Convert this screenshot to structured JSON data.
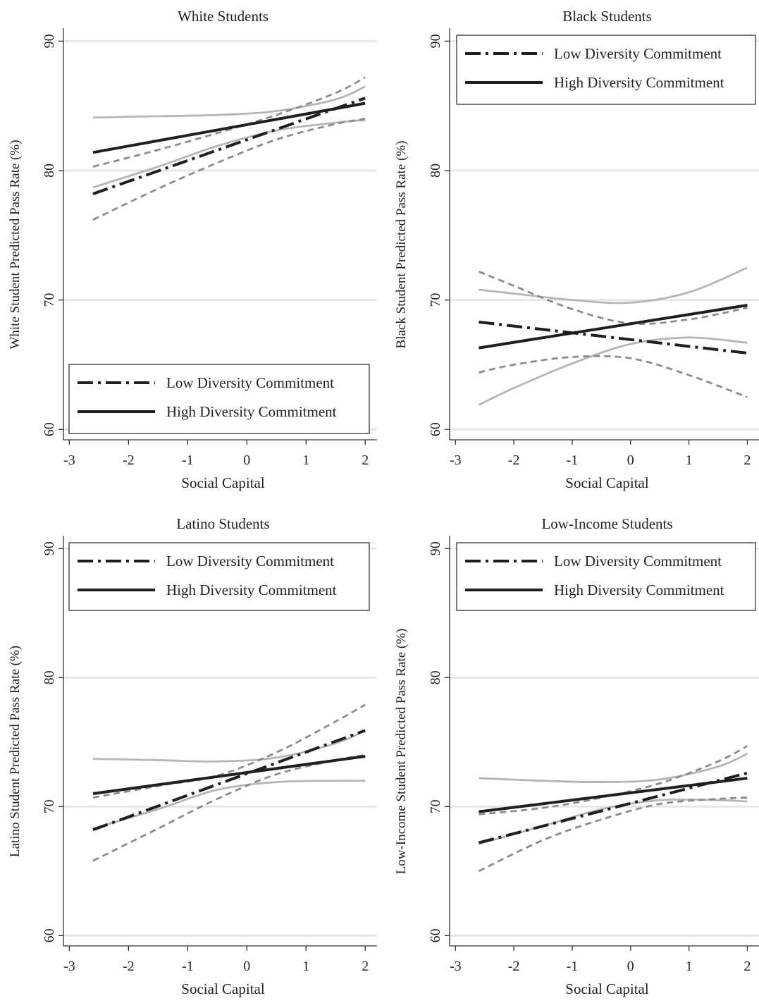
{
  "figure": {
    "layout": "2x2 grid"
  },
  "legend_labels": {
    "low": "Low Diversity Commitment",
    "high": "High Diversity Commitment"
  },
  "chart_data": [
    {
      "type": "line",
      "title": "White Students",
      "xlabel": "Social Capital",
      "ylabel": "White Student Predicted Pass Rate (%)",
      "xlim": [
        -3.1,
        2.2
      ],
      "ylim": [
        59.2,
        91
      ],
      "xticks": [
        -3,
        -2,
        -1,
        0,
        1,
        2
      ],
      "yticks": [
        60,
        70,
        80,
        90
      ],
      "grid": "horizontal",
      "legend": "bottom-left",
      "series": [
        {
          "name": "Low Diversity Commitment",
          "role": "low",
          "x": [
            -2.6,
            2.0
          ],
          "y": [
            78.2,
            85.6
          ]
        },
        {
          "name": "High Diversity Commitment",
          "role": "high",
          "x": [
            -2.6,
            2.0
          ],
          "y": [
            81.4,
            85.2
          ]
        },
        {
          "role": "low-ci-upper",
          "x": [
            -2.6,
            -1.5,
            -0.5,
            0.5,
            1.5,
            2.0
          ],
          "y": [
            80.3,
            81.6,
            82.9,
            84.3,
            86.0,
            87.2
          ]
        },
        {
          "role": "low-ci-lower",
          "x": [
            -2.6,
            -1.5,
            -0.5,
            0.5,
            1.5,
            2.0
          ],
          "y": [
            76.2,
            78.6,
            80.6,
            82.4,
            83.6,
            84.0
          ]
        },
        {
          "role": "high-ci-upper",
          "x": [
            -2.6,
            -1.5,
            -0.5,
            0.5,
            1.5,
            2.0
          ],
          "y": [
            84.1,
            84.2,
            84.3,
            84.6,
            85.5,
            86.5
          ]
        },
        {
          "role": "high-ci-lower",
          "x": [
            -2.6,
            -1.5,
            -0.5,
            0.5,
            1.5,
            2.0
          ],
          "y": [
            78.7,
            80.3,
            81.9,
            83.1,
            83.7,
            83.9
          ]
        }
      ]
    },
    {
      "type": "line",
      "title": "Black Students",
      "xlabel": "Social Capital",
      "ylabel": "Black Student Predicted Pass Rate (%)",
      "xlim": [
        -3.1,
        2.2
      ],
      "ylim": [
        59.2,
        91
      ],
      "xticks": [
        -3,
        -2,
        -1,
        0,
        1,
        2
      ],
      "yticks": [
        60,
        70,
        80,
        90
      ],
      "grid": "horizontal",
      "legend": "top-right",
      "series": [
        {
          "name": "Low Diversity Commitment",
          "role": "low",
          "x": [
            -2.6,
            2.0
          ],
          "y": [
            68.3,
            65.9
          ]
        },
        {
          "name": "High Diversity Commitment",
          "role": "high",
          "x": [
            -2.6,
            2.0
          ],
          "y": [
            66.3,
            69.6
          ]
        },
        {
          "role": "low-ci-upper",
          "x": [
            -2.6,
            -2.0,
            -1.0,
            0.0,
            1.0,
            2.0
          ],
          "y": [
            72.2,
            71.1,
            69.3,
            68.2,
            68.5,
            69.4
          ]
        },
        {
          "role": "low-ci-lower",
          "x": [
            -2.6,
            -2.0,
            -1.0,
            0.0,
            1.0,
            2.0
          ],
          "y": [
            64.4,
            65.0,
            65.6,
            65.5,
            64.2,
            62.5
          ]
        },
        {
          "role": "high-ci-upper",
          "x": [
            -2.6,
            -2.0,
            -1.0,
            0.0,
            1.0,
            2.0
          ],
          "y": [
            70.8,
            70.5,
            70.0,
            69.8,
            70.6,
            72.5
          ]
        },
        {
          "role": "high-ci-lower",
          "x": [
            -2.6,
            -2.0,
            -1.0,
            0.0,
            1.0,
            2.0
          ],
          "y": [
            61.9,
            63.2,
            65.1,
            66.6,
            67.1,
            66.7
          ]
        }
      ]
    },
    {
      "type": "line",
      "title": "Latino Students",
      "xlabel": "Social Capital",
      "ylabel": "Latino Student Predicted Pass Rate (%)",
      "xlim": [
        -3.1,
        2.2
      ],
      "ylim": [
        59.2,
        91
      ],
      "xticks": [
        -3,
        -2,
        -1,
        0,
        1,
        2
      ],
      "yticks": [
        60,
        70,
        80,
        90
      ],
      "grid": "horizontal",
      "legend": "top",
      "series": [
        {
          "name": "Low Diversity Commitment",
          "role": "low",
          "x": [
            -2.6,
            2.0
          ],
          "y": [
            68.2,
            75.9
          ]
        },
        {
          "name": "High Diversity Commitment",
          "role": "high",
          "x": [
            -2.6,
            2.0
          ],
          "y": [
            71.0,
            73.9
          ]
        },
        {
          "role": "low-ci-upper",
          "x": [
            -2.6,
            -1.5,
            -0.5,
            0.5,
            1.5,
            2.0
          ],
          "y": [
            70.7,
            71.6,
            72.4,
            74.2,
            76.6,
            77.9
          ]
        },
        {
          "role": "low-ci-lower",
          "x": [
            -2.6,
            -1.5,
            -0.5,
            0.5,
            1.5,
            2.0
          ],
          "y": [
            65.8,
            68.3,
            70.6,
            72.5,
            73.6,
            74.0
          ]
        },
        {
          "role": "high-ci-upper",
          "x": [
            -2.6,
            -1.5,
            -0.5,
            0.5,
            1.5,
            2.0
          ],
          "y": [
            73.7,
            73.6,
            73.5,
            73.8,
            74.9,
            75.9
          ]
        },
        {
          "role": "high-ci-lower",
          "x": [
            -2.6,
            -1.5,
            -0.5,
            0.5,
            1.5,
            2.0
          ],
          "y": [
            68.3,
            69.8,
            71.3,
            71.9,
            72.0,
            72.0
          ]
        }
      ]
    },
    {
      "type": "line",
      "title": "Low-Income Students",
      "xlabel": "Social Capital",
      "ylabel": "Low-Income Student Predicted Pass Rate (%)",
      "xlim": [
        -3.1,
        2.2
      ],
      "ylim": [
        59.2,
        91
      ],
      "xticks": [
        -3,
        -2,
        -1,
        0,
        1,
        2
      ],
      "yticks": [
        60,
        70,
        80,
        90
      ],
      "grid": "horizontal",
      "legend": "top",
      "series": [
        {
          "name": "Low Diversity Commitment",
          "role": "low",
          "x": [
            -2.6,
            2.0
          ],
          "y": [
            67.2,
            72.6
          ]
        },
        {
          "name": "High Diversity Commitment",
          "role": "high",
          "x": [
            -2.6,
            2.0
          ],
          "y": [
            69.6,
            72.2
          ]
        },
        {
          "role": "low-ci-upper",
          "x": [
            -2.6,
            -1.5,
            -0.5,
            0.5,
            1.5,
            2.0
          ],
          "y": [
            69.4,
            69.9,
            70.7,
            71.8,
            73.5,
            74.7
          ]
        },
        {
          "role": "low-ci-lower",
          "x": [
            -2.6,
            -1.5,
            -0.5,
            0.5,
            1.5,
            2.0
          ],
          "y": [
            65.0,
            67.4,
            69.0,
            70.2,
            70.6,
            70.7
          ]
        },
        {
          "role": "high-ci-upper",
          "x": [
            -2.6,
            -1.5,
            -0.5,
            0.5,
            1.5,
            2.0
          ],
          "y": [
            72.2,
            72.0,
            71.9,
            72.1,
            73.1,
            74.1
          ]
        },
        {
          "role": "high-ci-lower",
          "x": [
            -2.6,
            -1.5,
            -0.5,
            0.5,
            1.5,
            2.0
          ],
          "y": [
            67.1,
            68.5,
            69.8,
            70.5,
            70.5,
            70.4
          ]
        }
      ]
    }
  ],
  "colors": {
    "main_line": "#1f1f1f",
    "low_ci": "#8c8c8c",
    "high_ci": "#b5b5b5",
    "gridline": "#e6e6e6",
    "axis": "#333333"
  }
}
